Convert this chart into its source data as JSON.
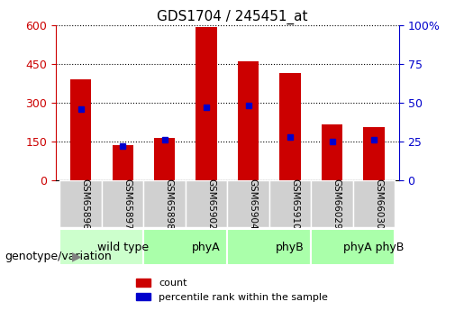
{
  "title": "GDS1704 / 245451_at",
  "samples": [
    "GSM65896",
    "GSM65897",
    "GSM65898",
    "GSM65902",
    "GSM65904",
    "GSM65910",
    "GSM66029",
    "GSM66030"
  ],
  "counts": [
    390,
    135,
    165,
    590,
    460,
    415,
    215,
    205
  ],
  "percentile_ranks": [
    46,
    22,
    26,
    47,
    48,
    28,
    25,
    26
  ],
  "groups": [
    {
      "label": "wild type",
      "color": "#ccffcc",
      "start": 0,
      "end": 2
    },
    {
      "label": "phyA",
      "color": "#aaffaa",
      "start": 2,
      "end": 4
    },
    {
      "label": "phyB",
      "color": "#aaffaa",
      "start": 4,
      "end": 6
    },
    {
      "label": "phyA phyB",
      "color": "#aaffaa",
      "start": 6,
      "end": 8
    }
  ],
  "bar_color": "#cc0000",
  "blue_color": "#0000cc",
  "ylabel_left": "",
  "ylabel_right": "",
  "ylim_left": [
    0,
    600
  ],
  "ylim_right": [
    0,
    100
  ],
  "yticks_left": [
    0,
    150,
    300,
    450,
    600
  ],
  "yticks_right": [
    0,
    25,
    50,
    75,
    100
  ],
  "bg_color": "#f0f0f0",
  "legend_count": "count",
  "legend_pct": "percentile rank within the sample",
  "genotype_label": "genotype/variation"
}
